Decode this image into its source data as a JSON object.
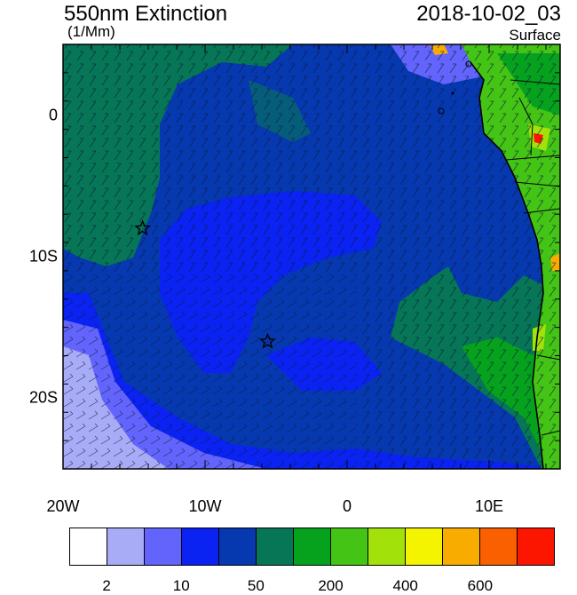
{
  "header": {
    "title": "550nm Extinction",
    "units": "(1/Mm)",
    "datetime": "2018-10-02_03",
    "level": "Surface"
  },
  "map": {
    "x_labels": [
      {
        "lon": -20,
        "text": "20W"
      },
      {
        "lon": -10,
        "text": "10W"
      },
      {
        "lon": 0,
        "text": "0"
      },
      {
        "lon": 10,
        "text": "10E"
      }
    ],
    "y_labels": [
      {
        "lat": 0,
        "text": "0"
      },
      {
        "lat": -10,
        "text": "10S"
      },
      {
        "lat": -20,
        "text": "20S"
      }
    ],
    "lon_range": [
      -20,
      15
    ],
    "lat_range": [
      -25,
      5
    ],
    "markers": [
      {
        "name": "star-marker",
        "lon": -14.4,
        "lat": -8.0
      },
      {
        "name": "star-marker",
        "lon": -5.6,
        "lat": -16.0
      }
    ]
  },
  "colorbar": {
    "colors": [
      "#ffffff",
      "#a8acf6",
      "#6264fb",
      "#0a22f2",
      "#0638b0",
      "#067656",
      "#06a21e",
      "#44c414",
      "#a2e20a",
      "#f4f400",
      "#f9ac00",
      "#fb6000",
      "#fc1600"
    ],
    "labels": [
      {
        "index": 1,
        "text": "2"
      },
      {
        "index": 3,
        "text": "10"
      },
      {
        "index": 5,
        "text": "50"
      },
      {
        "index": 7,
        "text": "200"
      },
      {
        "index": 9,
        "text": "400"
      },
      {
        "index": 11,
        "text": "600"
      }
    ]
  }
}
